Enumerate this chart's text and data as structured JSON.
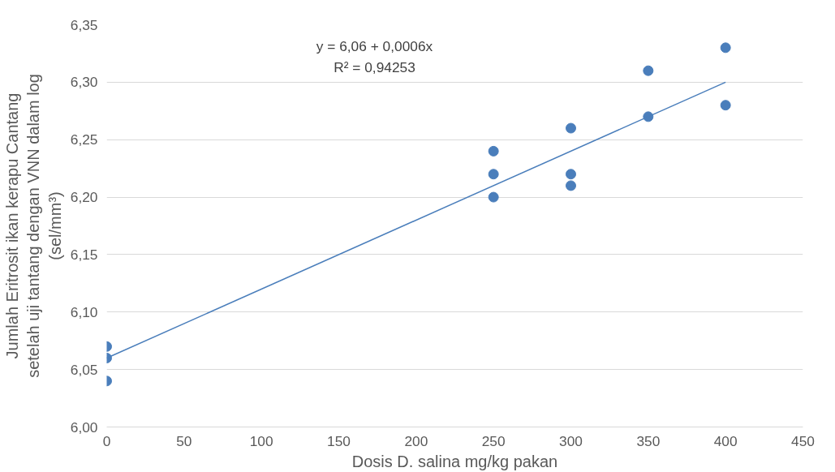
{
  "chart_data": {
    "type": "scatter",
    "xlabel": "Dosis D. salina mg/kg pakan",
    "ylabel": "Jumlah Eritrosit ikan kerapu Cantang\nsetelah uji tantang dengan VNN dalam log\n(sel/mm³)",
    "series": [
      {
        "marker": "circle",
        "color": "#4a7ebb",
        "x": [
          0,
          0,
          0,
          250,
          250,
          250,
          300,
          300,
          300,
          350,
          350,
          400,
          400
        ],
        "values": [
          6.07,
          6.06,
          6.04,
          6.24,
          6.22,
          6.2,
          6.26,
          6.22,
          6.21,
          6.31,
          6.27,
          6.33,
          6.28
        ]
      },
      {
        "type": "line",
        "marker": "none",
        "color": "#4a7ebb",
        "x": [
          0,
          400
        ],
        "values": [
          6.06,
          6.3
        ]
      }
    ],
    "annotations": [
      "y = 6,06 + 0,0006x",
      "R² = 0,94253"
    ],
    "xlim": [
      0,
      450
    ],
    "xticks": [
      0,
      50,
      100,
      150,
      200,
      250,
      300,
      350,
      400,
      450
    ],
    "ylim": [
      6.0,
      6.35
    ],
    "yticks": [
      {
        "value": 6.0,
        "label": "6,00"
      },
      {
        "value": 6.05,
        "label": "6,05"
      },
      {
        "value": 6.1,
        "label": "6,10"
      },
      {
        "value": 6.15,
        "label": "6,15"
      },
      {
        "value": 6.2,
        "label": "6,20"
      },
      {
        "value": 6.25,
        "label": "6,25"
      },
      {
        "value": 6.3,
        "label": "6,30"
      },
      {
        "value": 6.35,
        "label": "6,35"
      }
    ],
    "grid": "y"
  }
}
